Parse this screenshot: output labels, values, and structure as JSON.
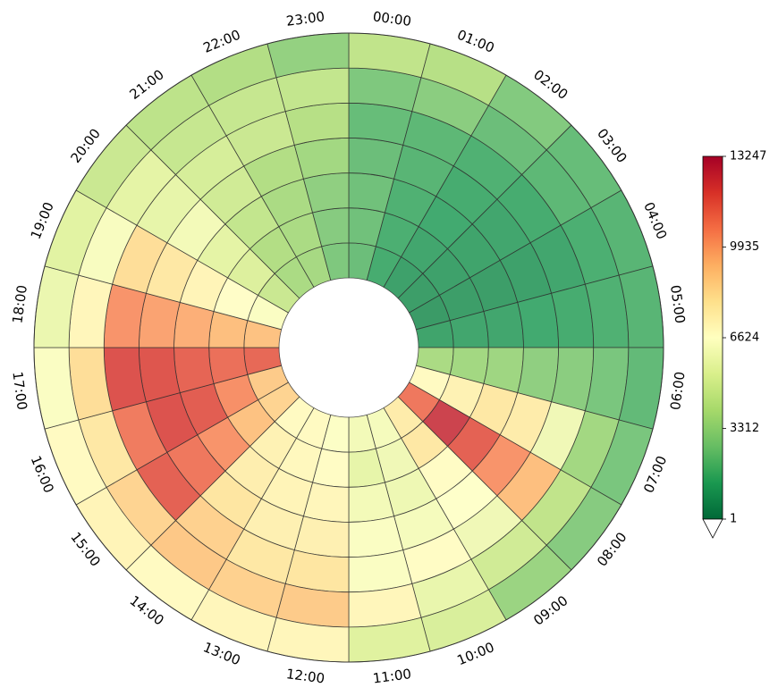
{
  "chart_data": {
    "type": "heatmap",
    "form": "radial",
    "direction": "clockwise from top",
    "hours": [
      "00:00",
      "01:00",
      "02:00",
      "03:00",
      "04:00",
      "05:00",
      "06:00",
      "07:00",
      "08:00",
      "09:00",
      "10:00",
      "11:00",
      "12:00",
      "13:00",
      "14:00",
      "15:00",
      "16:00",
      "17:00",
      "18:00",
      "19:00",
      "20:00",
      "21:00",
      "22:00",
      "23:00"
    ],
    "rings": 7,
    "ring_order": "innermost first",
    "colormap": "RdYlGn_r",
    "colorbar": {
      "min": 1,
      "max": 13247,
      "ticks": [
        1,
        3312,
        6624,
        9935,
        13247
      ],
      "tick_labels": [
        "1",
        "3312",
        "6624",
        "9935",
        "13247"
      ],
      "extend": "min"
    },
    "values": [
      [
        2200,
        2300,
        2300,
        2200,
        2100,
        2600,
        4300
      ],
      [
        1400,
        1500,
        1600,
        1800,
        1900,
        2900,
        4000
      ],
      [
        1000,
        1200,
        1300,
        1400,
        1600,
        2200,
        2700
      ],
      [
        900,
        1000,
        1100,
        1200,
        1400,
        1900,
        2100
      ],
      [
        800,
        900,
        900,
        1000,
        1200,
        1500,
        1800
      ],
      [
        1100,
        1200,
        1200,
        1300,
        1400,
        1600,
        1800
      ],
      [
        3700,
        3500,
        3400,
        3000,
        2900,
        2500,
        2000
      ],
      [
        6900,
        7300,
        7800,
        7600,
        6000,
        3500,
        2500
      ],
      [
        11000,
        12500,
        11600,
        10300,
        9200,
        4300,
        2800
      ],
      [
        7600,
        7800,
        6800,
        6600,
        6000,
        4800,
        3300
      ],
      [
        6200,
        6000,
        5900,
        6200,
        6800,
        5700,
        5100
      ],
      [
        6100,
        5600,
        6100,
        6400,
        6400,
        7100,
        5300
      ],
      [
        6500,
        6800,
        7100,
        7400,
        7900,
        8800,
        7100
      ],
      [
        6900,
        7000,
        7200,
        7400,
        7800,
        8600,
        7100
      ],
      [
        6900,
        7300,
        7500,
        7900,
        8600,
        8900,
        6900
      ],
      [
        8500,
        9100,
        10300,
        11000,
        11600,
        8500,
        7200
      ],
      [
        8800,
        10400,
        11700,
        12000,
        10900,
        7800,
        6900
      ],
      [
        11400,
        11200,
        11500,
        11900,
        12000,
        8200,
        6400
      ],
      [
        9100,
        9200,
        9600,
        9900,
        10300,
        7100,
        5800
      ],
      [
        6400,
        6700,
        7200,
        7800,
        8200,
        6300,
        5400
      ],
      [
        4600,
        5200,
        5500,
        6100,
        5600,
        5500,
        4600
      ],
      [
        3700,
        3900,
        4400,
        4800,
        5000,
        4500,
        4200
      ],
      [
        3600,
        3700,
        3700,
        3900,
        4600,
        4500,
        3900
      ],
      [
        2600,
        2800,
        3000,
        3500,
        4000,
        4400,
        3100
      ]
    ]
  }
}
